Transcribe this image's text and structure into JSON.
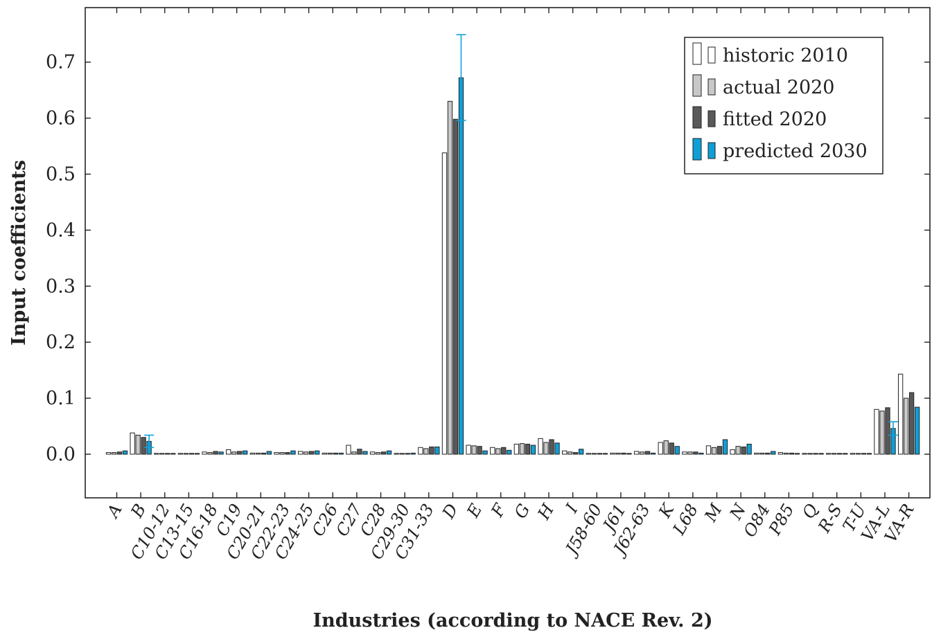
{
  "chart_data": {
    "type": "bar",
    "xlabel": "Industries (according to NACE Rev. 2)",
    "ylabel": "Input coefficients",
    "ylim": [
      -0.08,
      0.8
    ],
    "yticks": [
      "0.0",
      "0.1",
      "0.2",
      "0.3",
      "0.4",
      "0.5",
      "0.6",
      "0.7"
    ],
    "yticks_values": [
      0,
      0.1,
      0.2,
      0.3,
      0.4,
      0.5,
      0.6,
      0.7
    ],
    "legend_position": "top-right",
    "categories": [
      "A",
      "B",
      "C10-12",
      "C13-15",
      "C16-18",
      "C19",
      "C20-21",
      "C22-23",
      "C24-25",
      "C26",
      "C27",
      "C28",
      "C29-30",
      "C31-33",
      "D",
      "E",
      "F",
      "G",
      "H",
      "I",
      "J58-60",
      "J61",
      "J62-63",
      "K",
      "L68",
      "M",
      "N",
      "O84",
      "P85",
      "Q",
      "R-S",
      "T-U",
      "VA-L",
      "VA-R"
    ],
    "series": [
      {
        "name": "historic 2010",
        "color": "#ffffff",
        "values": [
          0.003,
          0.038,
          0.001,
          0.0005,
          0.004,
          0.008,
          0.002,
          0.003,
          0.005,
          0.002,
          0.016,
          0.004,
          0.001,
          0.012,
          0.538,
          0.016,
          0.012,
          0.018,
          0.028,
          0.006,
          0.001,
          0.002,
          0.005,
          0.021,
          0.004,
          0.015,
          0.008,
          0.002,
          0.003,
          0.0005,
          0.001,
          0.0003,
          0.08,
          0.143
        ]
      },
      {
        "name": "actual 2020",
        "color": "#c8c8c8",
        "values": [
          0.003,
          0.034,
          0.001,
          0.0005,
          0.003,
          0.004,
          0.002,
          0.003,
          0.004,
          0.002,
          0.004,
          0.003,
          0.001,
          0.01,
          0.63,
          0.015,
          0.01,
          0.019,
          0.021,
          0.004,
          0.001,
          0.002,
          0.004,
          0.024,
          0.004,
          0.012,
          0.014,
          0.002,
          0.002,
          0.0005,
          0.001,
          0.0003,
          0.077,
          0.1
        ]
      },
      {
        "name": "fitted 2020",
        "color": "#595959",
        "values": [
          0.004,
          0.03,
          0.001,
          0.0005,
          0.005,
          0.005,
          0.002,
          0.003,
          0.005,
          0.002,
          0.009,
          0.004,
          0.001,
          0.013,
          0.598,
          0.014,
          0.012,
          0.018,
          0.026,
          0.003,
          0.001,
          0.002,
          0.005,
          0.02,
          0.004,
          0.014,
          0.013,
          0.002,
          0.002,
          0.0005,
          0.001,
          0.0003,
          0.083,
          0.11
        ]
      },
      {
        "name": "predicted 2030",
        "color": "#0f9fd8",
        "values": [
          0.006,
          0.023,
          0.001,
          0.0005,
          0.004,
          0.006,
          0.005,
          0.006,
          0.006,
          0.002,
          0.005,
          0.006,
          0.002,
          0.013,
          0.672,
          0.006,
          0.007,
          0.016,
          0.02,
          0.009,
          0.001,
          0.001,
          0.002,
          0.014,
          0.002,
          0.026,
          0.018,
          0.005,
          0.001,
          0.0005,
          0.001,
          0.0003,
          0.046,
          0.084
        ]
      }
    ],
    "error_bars": [
      {
        "category": "B",
        "series": "predicted 2030",
        "low": 0.012,
        "high": 0.034
      },
      {
        "category": "D",
        "series": "predicted 2030",
        "low": 0.596,
        "high": 0.749
      },
      {
        "category": "VA-L",
        "series": "predicted 2030",
        "low": 0.034,
        "high": 0.058
      }
    ]
  }
}
